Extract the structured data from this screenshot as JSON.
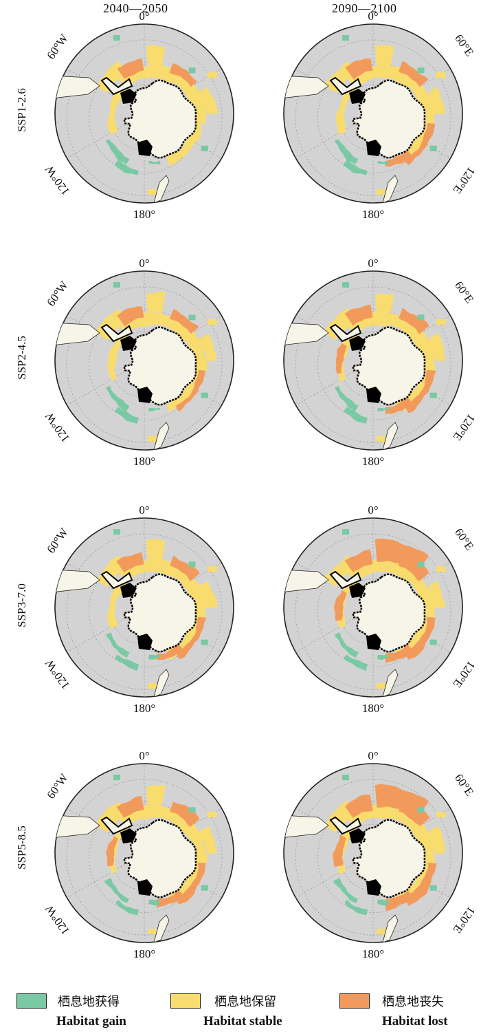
{
  "columns": [
    "2040—2050",
    "2090—2100"
  ],
  "rows": [
    "SSP1-2.6",
    "SSP2-4.5",
    "SSP3-7.0",
    "SSP5-8.5"
  ],
  "axis_labels": {
    "top": "0°",
    "bottom": "180°",
    "west_60": "60°W",
    "west_120": "120°W",
    "east_60": "60°E",
    "east_120": "120°E"
  },
  "legend": [
    {
      "cn": "栖息地获得",
      "en": "Habitat gain",
      "color": "#79c9a4"
    },
    {
      "cn": "栖息地保留",
      "en": "Habitat stable",
      "color": "#f8dc6e"
    },
    {
      "cn": "栖息地丧失",
      "en": "Habitat lost",
      "color": "#f29a5c"
    }
  ],
  "colors": {
    "ocean": "#d3d3d3",
    "land": "#f7f5e8",
    "ice_shelf": "#000000",
    "outline": "#222222"
  }
}
